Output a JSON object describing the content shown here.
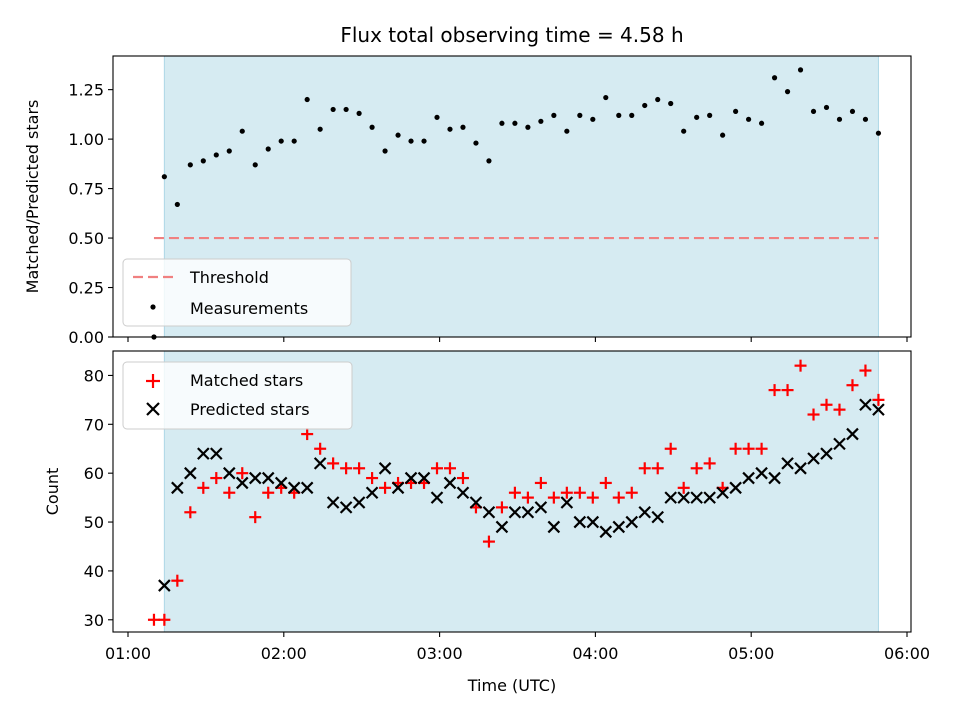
{
  "chart_data": [
    {
      "type": "scatter",
      "title": "Flux total observing time = 4.58 h",
      "xlabel": "",
      "ylabel": "Matched/Predicted stars",
      "x_unit": "UTC time",
      "xlim": [
        "01:00",
        "06:00"
      ],
      "ylim": [
        0,
        1.42
      ],
      "yticks": [
        "0.00",
        "0.25",
        "0.50",
        "0.75",
        "1.00",
        "1.25"
      ],
      "shaded_span": [
        "01:14",
        "05:49"
      ],
      "shade_color": "#add8e6",
      "threshold": {
        "name": "Threshold",
        "value": 0.5,
        "x_range": [
          "01:10",
          "05:49"
        ],
        "color": "#f08080",
        "style": "dashed"
      },
      "series": [
        {
          "name": "Measurements",
          "marker": "dot",
          "color": "#000000",
          "points": [
            [
              "01:10",
              0.0
            ],
            [
              "01:14",
              0.81
            ],
            [
              "01:19",
              0.67
            ],
            [
              "01:24",
              0.87
            ],
            [
              "01:29",
              0.89
            ],
            [
              "01:34",
              0.92
            ],
            [
              "01:39",
              0.94
            ],
            [
              "01:44",
              1.04
            ],
            [
              "01:49",
              0.87
            ],
            [
              "01:54",
              0.95
            ],
            [
              "01:59",
              0.99
            ],
            [
              "02:04",
              0.99
            ],
            [
              "02:09",
              1.2
            ],
            [
              "02:14",
              1.05
            ],
            [
              "02:19",
              1.15
            ],
            [
              "02:24",
              1.15
            ],
            [
              "02:29",
              1.13
            ],
            [
              "02:34",
              1.06
            ],
            [
              "02:39",
              0.94
            ],
            [
              "02:44",
              1.02
            ],
            [
              "02:49",
              0.99
            ],
            [
              "02:54",
              0.99
            ],
            [
              "02:59",
              1.11
            ],
            [
              "03:04",
              1.05
            ],
            [
              "03:09",
              1.06
            ],
            [
              "03:14",
              0.98
            ],
            [
              "03:19",
              0.89
            ],
            [
              "03:24",
              1.08
            ],
            [
              "03:29",
              1.08
            ],
            [
              "03:34",
              1.06
            ],
            [
              "03:39",
              1.09
            ],
            [
              "03:44",
              1.12
            ],
            [
              "03:49",
              1.04
            ],
            [
              "03:54",
              1.12
            ],
            [
              "03:59",
              1.1
            ],
            [
              "04:04",
              1.21
            ],
            [
              "04:09",
              1.12
            ],
            [
              "04:14",
              1.12
            ],
            [
              "04:19",
              1.17
            ],
            [
              "04:24",
              1.2
            ],
            [
              "04:29",
              1.18
            ],
            [
              "04:34",
              1.04
            ],
            [
              "04:39",
              1.11
            ],
            [
              "04:44",
              1.12
            ],
            [
              "04:49",
              1.02
            ],
            [
              "04:54",
              1.14
            ],
            [
              "04:59",
              1.1
            ],
            [
              "05:04",
              1.08
            ],
            [
              "05:09",
              1.31
            ],
            [
              "05:14",
              1.24
            ],
            [
              "05:19",
              1.35
            ],
            [
              "05:24",
              1.14
            ],
            [
              "05:29",
              1.16
            ],
            [
              "05:34",
              1.1
            ],
            [
              "05:39",
              1.14
            ],
            [
              "05:44",
              1.1
            ],
            [
              "05:49",
              1.03
            ]
          ]
        }
      ],
      "legend": {
        "position": "lower-left",
        "entries": [
          "Threshold",
          "Measurements"
        ]
      }
    },
    {
      "type": "scatter",
      "title": "",
      "xlabel": "Time (UTC)",
      "ylabel": "Count",
      "xlim": [
        "01:00",
        "06:00"
      ],
      "ylim": [
        27.5,
        85
      ],
      "yticks": [
        "30",
        "40",
        "50",
        "60",
        "70",
        "80"
      ],
      "xticks": [
        "01:00",
        "02:00",
        "03:00",
        "04:00",
        "05:00",
        "06:00"
      ],
      "shaded_span": [
        "01:14",
        "05:49"
      ],
      "shade_color": "#add8e6",
      "series": [
        {
          "name": "Matched stars",
          "marker": "plus",
          "color": "#ff0000",
          "points": [
            [
              "01:10",
              30
            ],
            [
              "01:14",
              30
            ],
            [
              "01:19",
              38
            ],
            [
              "01:24",
              52
            ],
            [
              "01:29",
              57
            ],
            [
              "01:34",
              59
            ],
            [
              "01:39",
              56
            ],
            [
              "01:44",
              60
            ],
            [
              "01:49",
              51
            ],
            [
              "01:54",
              56
            ],
            [
              "01:59",
              57
            ],
            [
              "02:04",
              56
            ],
            [
              "02:09",
              68
            ],
            [
              "02:14",
              65
            ],
            [
              "02:19",
              62
            ],
            [
              "02:24",
              61
            ],
            [
              "02:29",
              61
            ],
            [
              "02:34",
              59
            ],
            [
              "02:39",
              57
            ],
            [
              "02:44",
              58
            ],
            [
              "02:49",
              58
            ],
            [
              "02:54",
              58
            ],
            [
              "02:59",
              61
            ],
            [
              "03:04",
              61
            ],
            [
              "03:09",
              59
            ],
            [
              "03:14",
              53
            ],
            [
              "03:19",
              46
            ],
            [
              "03:24",
              53
            ],
            [
              "03:29",
              56
            ],
            [
              "03:34",
              55
            ],
            [
              "03:39",
              58
            ],
            [
              "03:44",
              55
            ],
            [
              "03:49",
              56
            ],
            [
              "03:54",
              56
            ],
            [
              "03:59",
              55
            ],
            [
              "04:04",
              58
            ],
            [
              "04:09",
              55
            ],
            [
              "04:14",
              56
            ],
            [
              "04:19",
              61
            ],
            [
              "04:24",
              61
            ],
            [
              "04:29",
              65
            ],
            [
              "04:34",
              57
            ],
            [
              "04:39",
              61
            ],
            [
              "04:44",
              62
            ],
            [
              "04:49",
              57
            ],
            [
              "04:54",
              65
            ],
            [
              "04:59",
              65
            ],
            [
              "05:04",
              65
            ],
            [
              "05:09",
              77
            ],
            [
              "05:14",
              77
            ],
            [
              "05:19",
              82
            ],
            [
              "05:24",
              72
            ],
            [
              "05:29",
              74
            ],
            [
              "05:34",
              73
            ],
            [
              "05:39",
              78
            ],
            [
              "05:44",
              81
            ],
            [
              "05:49",
              75
            ]
          ]
        },
        {
          "name": "Predicted stars",
          "marker": "x",
          "color": "#000000",
          "points": [
            [
              "01:14",
              37
            ],
            [
              "01:19",
              57
            ],
            [
              "01:24",
              60
            ],
            [
              "01:29",
              64
            ],
            [
              "01:34",
              64
            ],
            [
              "01:39",
              60
            ],
            [
              "01:44",
              58
            ],
            [
              "01:49",
              59
            ],
            [
              "01:54",
              59
            ],
            [
              "01:59",
              58
            ],
            [
              "02:04",
              57
            ],
            [
              "02:09",
              57
            ],
            [
              "02:14",
              62
            ],
            [
              "02:19",
              54
            ],
            [
              "02:24",
              53
            ],
            [
              "02:29",
              54
            ],
            [
              "02:34",
              56
            ],
            [
              "02:39",
              61
            ],
            [
              "02:44",
              57
            ],
            [
              "02:49",
              59
            ],
            [
              "02:54",
              59
            ],
            [
              "02:59",
              55
            ],
            [
              "03:04",
              58
            ],
            [
              "03:09",
              56
            ],
            [
              "03:14",
              54
            ],
            [
              "03:19",
              52
            ],
            [
              "03:24",
              49
            ],
            [
              "03:29",
              52
            ],
            [
              "03:34",
              52
            ],
            [
              "03:39",
              53
            ],
            [
              "03:44",
              49
            ],
            [
              "03:49",
              54
            ],
            [
              "03:54",
              50
            ],
            [
              "03:59",
              50
            ],
            [
              "04:04",
              48
            ],
            [
              "04:09",
              49
            ],
            [
              "04:14",
              50
            ],
            [
              "04:19",
              52
            ],
            [
              "04:24",
              51
            ],
            [
              "04:29",
              55
            ],
            [
              "04:34",
              55
            ],
            [
              "04:39",
              55
            ],
            [
              "04:44",
              55
            ],
            [
              "04:49",
              56
            ],
            [
              "04:54",
              57
            ],
            [
              "04:59",
              59
            ],
            [
              "05:04",
              60
            ],
            [
              "05:09",
              59
            ],
            [
              "05:14",
              62
            ],
            [
              "05:19",
              61
            ],
            [
              "05:24",
              63
            ],
            [
              "05:29",
              64
            ],
            [
              "05:34",
              66
            ],
            [
              "05:39",
              68
            ],
            [
              "05:44",
              74
            ],
            [
              "05:49",
              73
            ]
          ]
        }
      ],
      "legend": {
        "position": "upper-left",
        "entries": [
          "Matched stars",
          "Predicted stars"
        ]
      }
    }
  ]
}
